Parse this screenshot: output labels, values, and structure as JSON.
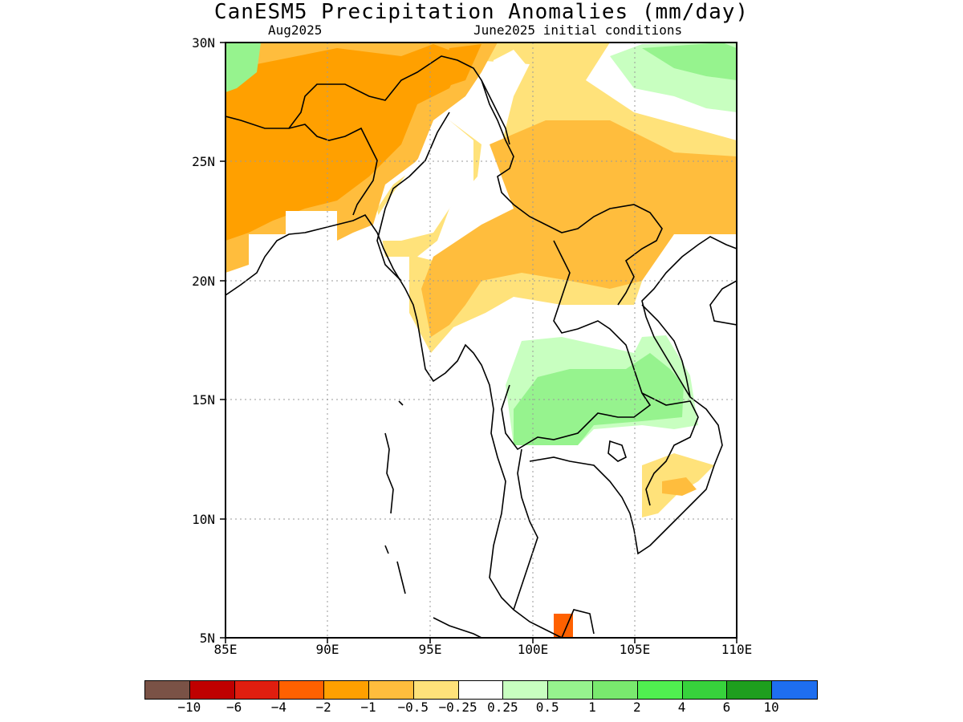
{
  "title": "CanESM5 Precipitation Anomalies (mm/day)",
  "subtitle_left": "Aug2025",
  "subtitle_right": "June2025 initial conditions",
  "y_axis_labels": [
    "30N",
    "25N",
    "20N",
    "15N",
    "10N",
    "5N"
  ],
  "x_axis_labels": [
    "85E",
    "90E",
    "95E",
    "100E",
    "105E",
    "110E"
  ],
  "colorbar": {
    "colors": [
      "#7a5246",
      "#bf0000",
      "#e01e0f",
      "#ff6100",
      "#ffa000",
      "#ffbd3d",
      "#ffe27a",
      "#ffffff",
      "#c8ffc0",
      "#96f38e",
      "#79e96e",
      "#50ef50",
      "#37d23c",
      "#1e9e1e",
      "#1e6ef0"
    ],
    "labels": [
      "−10",
      "−6",
      "−4",
      "−2",
      "−1",
      "−0.5",
      "−0.25",
      "0.25",
      "0.5",
      "1",
      "2",
      "4",
      "6",
      "10"
    ]
  }
}
